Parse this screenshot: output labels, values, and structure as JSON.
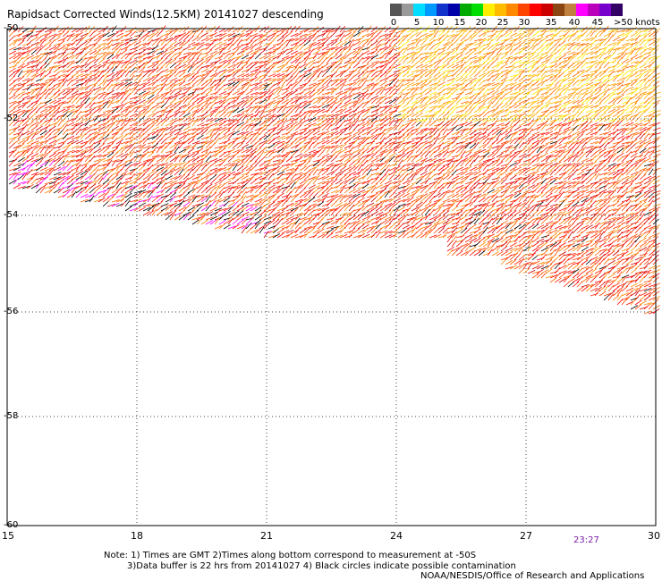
{
  "title": "Rapidsact Corrected Winds(12.5KM) 20141027 descending",
  "legend": {
    "colors": [
      "#555555",
      "#9a9a9a",
      "#00ddff",
      "#0099ff",
      "#1133cc",
      "#0000aa",
      "#00aa00",
      "#00dd00",
      "#ffee00",
      "#ffbb00",
      "#ff8800",
      "#ff4400",
      "#ff0000",
      "#cc0000",
      "#8b4513",
      "#c08040",
      "#ff00ff",
      "#bb00bb",
      "#7700cc",
      "#330066"
    ],
    "tick_labels": [
      "0",
      "5",
      "10",
      "15",
      "20",
      "25",
      "30",
      "35",
      "40",
      "45"
    ],
    "end_label": ">50 knots"
  },
  "map": {
    "lat_labels": [
      "-50",
      "-52",
      "-54",
      "-56",
      "-58",
      "-60"
    ],
    "lon_labels": [
      "15",
      "18",
      "21",
      "24",
      "27",
      "30"
    ],
    "time_label": "23:27"
  },
  "footer": {
    "line1": "Note: 1) Times are GMT 2)Times along bottom correspond to measurement at -50S",
    "line2": "3)Data buffer is 22 hrs from 20141027 4) Black circles indicate possible contamination",
    "line3": "NOAA/NESDIS/Office of Research and Applications"
  }
}
